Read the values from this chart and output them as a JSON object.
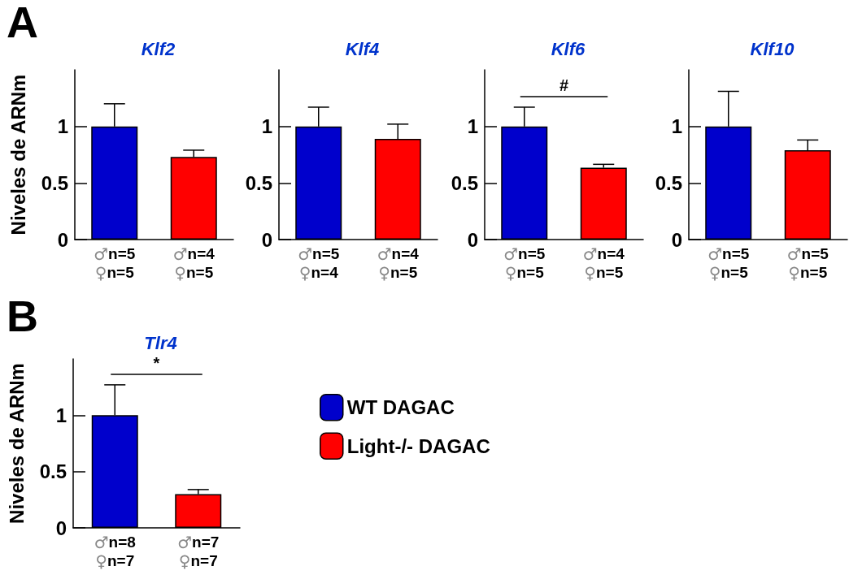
{
  "chart_data": [
    {
      "type": "bar",
      "title": "Klf2",
      "ylabel": "Niveles de ARNm",
      "annotations": [
        "A"
      ],
      "categories": [
        "♂n=5\n♀n=5",
        "♂n=4\n♀n=5"
      ],
      "ylim": [
        0,
        1.5
      ],
      "yticks": [
        0,
        0.5,
        1
      ],
      "grid": false,
      "legend": false,
      "series": [
        {
          "color": "#0000cc",
          "values": [
            1,
            null
          ],
          "errors": [
            [
              1,
              1.2
            ],
            null
          ]
        },
        {
          "color": "#ff0000",
          "values": [
            null,
            0.73
          ],
          "errors": [
            null,
            [
              0.73,
              0.79
            ]
          ]
        }
      ]
    },
    {
      "type": "bar",
      "title": "Klf4",
      "categories": [
        "♂n=5\n♀n=4",
        "♂n=4\n♀n=5"
      ],
      "ylim": [
        0,
        1.5
      ],
      "yticks": [
        0,
        0.5,
        1
      ],
      "grid": false,
      "legend": false,
      "series": [
        {
          "color": "#0000cc",
          "values": [
            1,
            null
          ],
          "errors": [
            [
              1,
              1.17
            ],
            null
          ]
        },
        {
          "color": "#ff0000",
          "values": [
            null,
            0.89
          ],
          "errors": [
            null,
            [
              0.89,
              1.02
            ]
          ]
        }
      ]
    },
    {
      "type": "bar",
      "title": "Klf6",
      "annotations": [
        "#"
      ],
      "categories": [
        "♂n=5\n♀n=5",
        "♂n=4\n♀n=5"
      ],
      "ylim": [
        0,
        1.5
      ],
      "yticks": [
        0,
        0.5,
        1
      ],
      "grid": false,
      "legend": false,
      "series": [
        {
          "color": "#0000cc",
          "values": [
            1,
            null
          ],
          "errors": [
            [
              1,
              1.17
            ],
            null
          ]
        },
        {
          "color": "#ff0000",
          "values": [
            null,
            0.635
          ],
          "errors": [
            null,
            [
              0.635,
              0.665
            ]
          ]
        }
      ]
    },
    {
      "type": "bar",
      "title": "Klf10",
      "categories": [
        "♂n=5\n♀n=5",
        "♂n=5\n♀n=5"
      ],
      "ylim": [
        0,
        1.5
      ],
      "yticks": [
        0,
        0.5,
        1
      ],
      "grid": false,
      "legend": false,
      "series": [
        {
          "color": "#0000cc",
          "values": [
            1,
            null
          ],
          "errors": [
            [
              1,
              1.31
            ],
            null
          ]
        },
        {
          "color": "#ff0000",
          "values": [
            null,
            0.79
          ],
          "errors": [
            null,
            [
              0.79,
              0.88
            ]
          ]
        }
      ]
    },
    {
      "type": "bar",
      "title": "Tlr4",
      "ylabel": "Niveles de ARNm",
      "annotations": [
        "B",
        "*"
      ],
      "categories": [
        "♂n=8\n♀n=7",
        "♂n=7\n♀n=7"
      ],
      "ylim": [
        0,
        1.5
      ],
      "yticks": [
        0,
        0.5,
        1
      ],
      "grid": false,
      "legend": "right",
      "series": [
        {
          "name": "WT DAGAC",
          "color": "#0000cc",
          "values": [
            1,
            null
          ],
          "errors": [
            [
              1,
              1.27
            ],
            null
          ]
        },
        {
          "name": "Light-/- DAGAC",
          "color": "#ff0000",
          "values": [
            null,
            0.3
          ],
          "errors": [
            null,
            [
              0.3,
              0.34
            ]
          ]
        }
      ]
    }
  ]
}
